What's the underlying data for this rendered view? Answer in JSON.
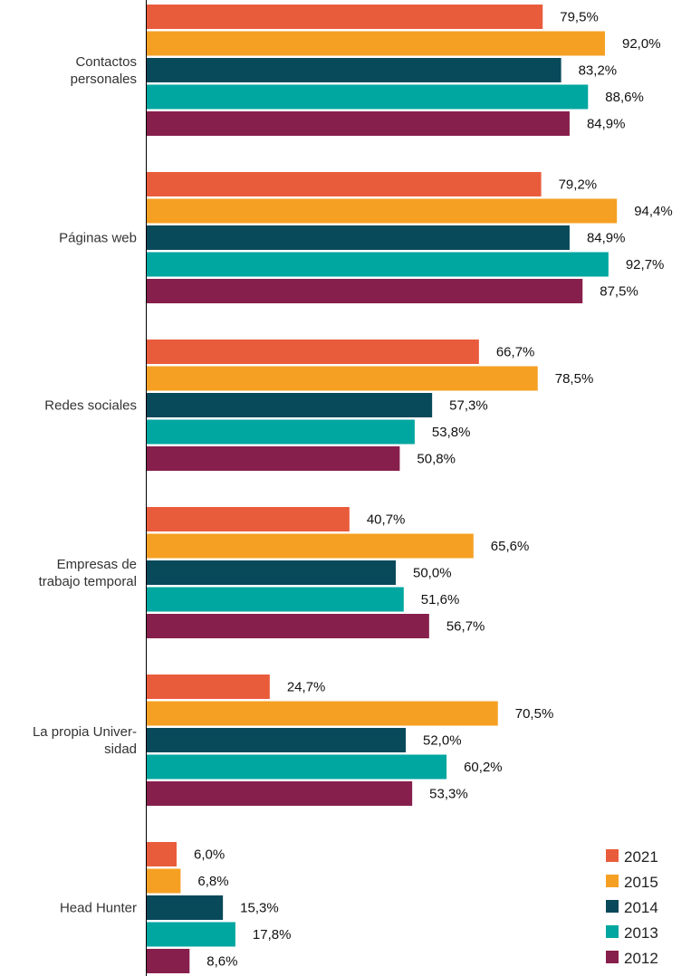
{
  "chart_data": {
    "type": "bar",
    "orientation": "horizontal",
    "title": "",
    "xlabel": "",
    "ylabel": "",
    "xlim": [
      0,
      100
    ],
    "grid": false,
    "legend_position": "bottom-right",
    "categories": [
      [
        "Contactos",
        "personales"
      ],
      [
        "Páginas web"
      ],
      [
        "Redes sociales"
      ],
      [
        "Empresas de",
        "trabajo temporal"
      ],
      [
        "La propia Univer-",
        "sidad"
      ],
      [
        "Head Hunter"
      ]
    ],
    "series": [
      {
        "name": "2021",
        "color": "#E95C3B",
        "values": [
          79.5,
          79.2,
          66.7,
          40.7,
          24.7,
          6.0
        ],
        "labels": [
          "79,5%",
          "79,2%",
          "66,7%",
          "40,7%",
          "24,7%",
          "6,0%"
        ]
      },
      {
        "name": "2015",
        "color": "#F5A023",
        "values": [
          92.0,
          94.4,
          78.5,
          65.6,
          70.5,
          6.8
        ],
        "labels": [
          "92,0%",
          "94,4%",
          "78,5%",
          "65,6%",
          "70,5%",
          "6,8%"
        ]
      },
      {
        "name": "2014",
        "color": "#08495A",
        "values": [
          83.2,
          84.9,
          57.3,
          50.0,
          52.0,
          15.3
        ],
        "labels": [
          "83,2%",
          "84,9%",
          "57,3%",
          "50,0%",
          "52,0%",
          "15,3%"
        ]
      },
      {
        "name": "2013",
        "color": "#00A6A0",
        "values": [
          88.6,
          92.7,
          53.8,
          51.6,
          60.2,
          17.8
        ],
        "labels": [
          "88,6%",
          "92,7%",
          "53,8%",
          "51,6%",
          "60,2%",
          "17,8%"
        ]
      },
      {
        "name": "2012",
        "color": "#871F4C",
        "values": [
          84.9,
          87.5,
          50.8,
          56.7,
          53.3,
          8.6
        ],
        "labels": [
          "84,9%",
          "87,5%",
          "50,8%",
          "56,7%",
          "53,3%",
          "8,6%"
        ]
      }
    ]
  }
}
